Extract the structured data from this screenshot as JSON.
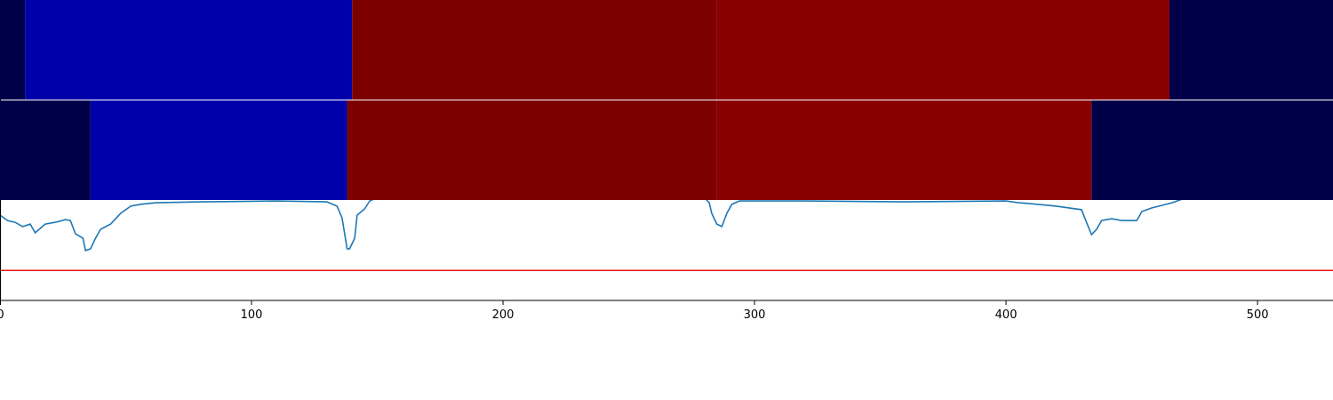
{
  "chart_data": [
    {
      "type": "strip",
      "xlim": [
        0,
        530
      ],
      "segments": [
        {
          "start": 0,
          "end": 10,
          "color": "#000048"
        },
        {
          "start": 10,
          "end": 140,
          "color": "#0000aa"
        },
        {
          "start": 140,
          "end": 285,
          "color": "#7c0000"
        },
        {
          "start": 285,
          "end": 465,
          "color": "#880000"
        },
        {
          "start": 465,
          "end": 530,
          "color": "#000048"
        }
      ]
    },
    {
      "type": "strip",
      "xlim": [
        0,
        530
      ],
      "segments": [
        {
          "start": 0,
          "end": 36,
          "color": "#000048"
        },
        {
          "start": 36,
          "end": 138,
          "color": "#0000aa"
        },
        {
          "start": 138,
          "end": 285,
          "color": "#7c0000"
        },
        {
          "start": 285,
          "end": 434,
          "color": "#880000"
        },
        {
          "start": 434,
          "end": 530,
          "color": "#000048"
        }
      ]
    },
    {
      "type": "line",
      "xlim": [
        0,
        530
      ],
      "ylim": [
        0,
        1
      ],
      "xticks": [
        0,
        100,
        200,
        300,
        400,
        500
      ],
      "color": "#1f77b4",
      "x": [
        0,
        3,
        6,
        9,
        12,
        14,
        18,
        22,
        26,
        28,
        30,
        33,
        34,
        36,
        38,
        40,
        44,
        48,
        52,
        56,
        62,
        80,
        110,
        130,
        134,
        136,
        138,
        139,
        141,
        142,
        145,
        147,
        150,
        200,
        280,
        282,
        283,
        285,
        287,
        289,
        291,
        294,
        320,
        360,
        400,
        405,
        410,
        420,
        430,
        432,
        434,
        436,
        438,
        442,
        446,
        452,
        454,
        458,
        466,
        470,
        530
      ],
      "values": [
        0.284,
        0.266,
        0.26,
        0.246,
        0.254,
        0.225,
        0.254,
        0.26,
        0.269,
        0.266,
        0.222,
        0.207,
        0.166,
        0.172,
        0.207,
        0.237,
        0.254,
        0.29,
        0.314,
        0.32,
        0.325,
        0.328,
        0.331,
        0.328,
        0.314,
        0.275,
        0.172,
        0.172,
        0.207,
        0.284,
        0.305,
        0.331,
        0.343,
        0.343,
        0.343,
        0.325,
        0.29,
        0.254,
        0.246,
        0.29,
        0.32,
        0.331,
        0.331,
        0.328,
        0.331,
        0.325,
        0.322,
        0.314,
        0.302,
        0.26,
        0.219,
        0.237,
        0.266,
        0.272,
        0.266,
        0.266,
        0.296,
        0.308,
        0.325,
        0.337,
        0.343
      ],
      "hline": {
        "value": 0.1,
        "color": "#e8141c"
      }
    }
  ]
}
